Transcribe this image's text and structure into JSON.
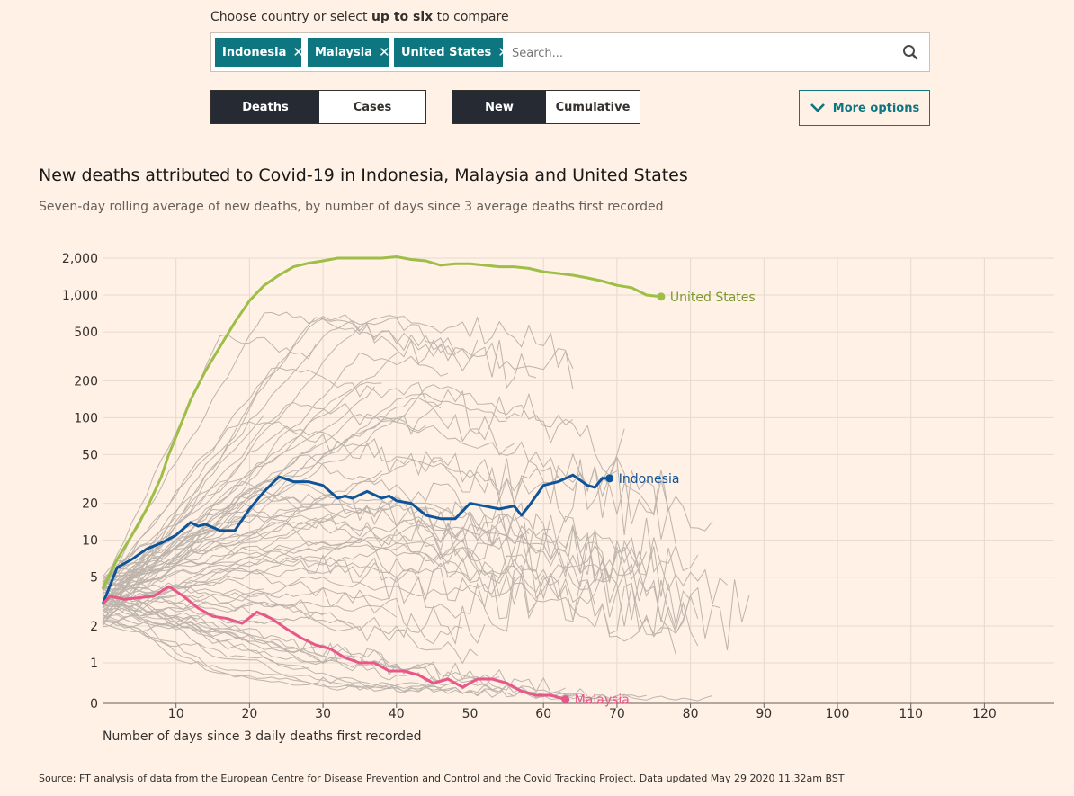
{
  "controls": {
    "prompt_pre": "Choose country or select ",
    "prompt_bold": "up to six",
    "prompt_post": " to compare",
    "chips": [
      "Indonesia",
      "Malaysia",
      "United States"
    ],
    "search_placeholder": "Search...",
    "metric_toggle": [
      "Deaths",
      "Cases"
    ],
    "mode_toggle": [
      "New",
      "Cumulative"
    ],
    "more_options_label": "More options"
  },
  "colors": {
    "background": "#fff1e5",
    "accent": "#0d7680",
    "toggle_active": "#262a33",
    "united_states": "#9dbe47",
    "indonesia": "#0f5499",
    "malaysia": "#e9568a",
    "background_lines": "#bdb4ac"
  },
  "chart_data": {
    "type": "line",
    "title": "New deaths attributed to Covid-19 in Indonesia, Malaysia and United States",
    "subtitle": "Seven-day rolling average of new deaths, by number of days since 3 average deaths first recorded",
    "xlabel": "Number of days since 3 daily deaths first recorded",
    "ylabel": "",
    "yscale": "log",
    "xlim": [
      0,
      130
    ],
    "x_ticks": [
      10,
      20,
      30,
      40,
      50,
      60,
      70,
      80,
      90,
      100,
      110,
      120
    ],
    "y_ticks": [
      {
        "value": 0,
        "label": "0"
      },
      {
        "value": 1,
        "label": "1"
      },
      {
        "value": 2,
        "label": "2"
      },
      {
        "value": 5,
        "label": "5"
      },
      {
        "value": 10,
        "label": "10"
      },
      {
        "value": 20,
        "label": "20"
      },
      {
        "value": 50,
        "label": "50"
      },
      {
        "value": 100,
        "label": "100"
      },
      {
        "value": 200,
        "label": "200"
      },
      {
        "value": 500,
        "label": "500"
      },
      {
        "value": 1000,
        "label": "1,000"
      },
      {
        "value": 2000,
        "label": "2,000"
      }
    ],
    "series": [
      {
        "name": "United States",
        "color": "#9dbe47",
        "x": [
          0,
          2,
          4,
          6,
          8,
          9,
          10,
          12,
          14,
          16,
          18,
          20,
          22,
          24,
          26,
          28,
          30,
          32,
          34,
          36,
          38,
          40,
          42,
          44,
          46,
          48,
          50,
          52,
          54,
          56,
          58,
          60,
          62,
          64,
          66,
          68,
          70,
          72,
          74,
          76
        ],
        "y": [
          4,
          7,
          11,
          18,
          33,
          50,
          70,
          140,
          240,
          380,
          600,
          900,
          1200,
          1450,
          1700,
          1820,
          1900,
          2000,
          2000,
          2000,
          2000,
          2050,
          1950,
          1900,
          1750,
          1800,
          1800,
          1750,
          1700,
          1700,
          1650,
          1550,
          1500,
          1450,
          1380,
          1300,
          1200,
          1150,
          1000,
          970
        ]
      },
      {
        "name": "Indonesia",
        "color": "#0f5499",
        "x": [
          0,
          2,
          4,
          6,
          8,
          10,
          12,
          13,
          14,
          16,
          18,
          20,
          22,
          24,
          26,
          28,
          30,
          32,
          33,
          34,
          36,
          38,
          39,
          40,
          42,
          44,
          46,
          48,
          50,
          52,
          54,
          56,
          57,
          58,
          60,
          62,
          64,
          66,
          67,
          68,
          69
        ],
        "y": [
          3,
          6,
          7,
          8.5,
          9.5,
          11,
          14,
          13,
          13.5,
          12,
          12,
          18,
          25,
          33,
          30,
          30,
          28,
          22,
          23,
          22,
          25,
          22,
          23,
          21,
          20,
          16,
          15,
          15,
          20,
          19,
          18,
          19,
          16,
          19,
          28,
          30,
          34,
          28,
          27,
          32,
          32
        ]
      },
      {
        "name": "Malaysia",
        "color": "#e9568a",
        "x": [
          0,
          1,
          3,
          5,
          7,
          9,
          11,
          13,
          15,
          17,
          19,
          21,
          23,
          25,
          27,
          29,
          31,
          33,
          35,
          37,
          39,
          41,
          43,
          45,
          47,
          49,
          51,
          53,
          55,
          57,
          59,
          61,
          63
        ],
        "y": [
          3,
          3.5,
          3.3,
          3.4,
          3.5,
          4.2,
          3.5,
          2.8,
          2.4,
          2.3,
          2.1,
          2.6,
          2.3,
          1.9,
          1.6,
          1.4,
          1.3,
          1.1,
          1,
          1,
          0.8,
          0.8,
          0.7,
          0.5,
          0.6,
          0.4,
          0.6,
          0.6,
          0.5,
          0.3,
          0.2,
          0.2,
          0.1
        ]
      }
    ],
    "background_series_description_count": 0
  },
  "source": "Source: FT analysis of data from the European Centre for Disease Prevention and Control and the Covid Tracking Project. Data updated May 29 2020 11.32am BST"
}
